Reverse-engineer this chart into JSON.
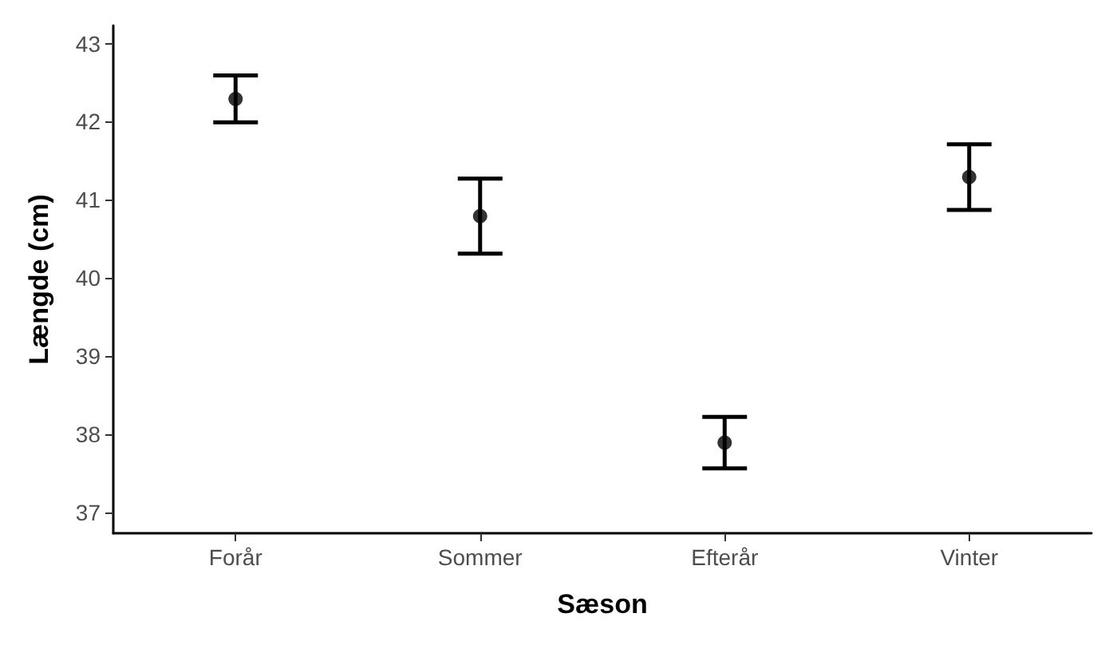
{
  "chart_data": {
    "type": "scatter",
    "xlabel": "Sæson",
    "ylabel": "Længde (cm)",
    "categories": [
      "Forår",
      "Sommer",
      "Efterår",
      "Vinter"
    ],
    "values": [
      42.29,
      40.79,
      37.89,
      41.29
    ],
    "errors": [
      0.3,
      0.48,
      0.33,
      0.42
    ],
    "color": "#000000",
    "ylim": [
      36.73,
      43.23
    ],
    "yticks": [
      37,
      38,
      39,
      40,
      41,
      42,
      43
    ],
    "grid": false,
    "marker": "circle"
  }
}
